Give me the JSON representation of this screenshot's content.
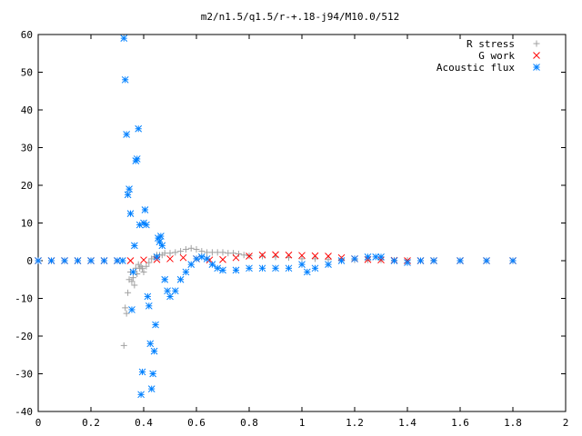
{
  "chart_data": {
    "type": "scatter",
    "title": "m2/n1.5/q1.5/r-+.18-j94/M10.0/512",
    "xlabel": "",
    "ylabel": "",
    "xlim": [
      0,
      2
    ],
    "ylim": [
      -40,
      60
    ],
    "x_ticks": [
      0,
      0.2,
      0.4,
      0.6,
      0.8,
      1,
      1.2,
      1.4,
      1.6,
      1.8,
      2
    ],
    "x_tick_labels": [
      "0",
      "0.2",
      "0.4",
      "0.6",
      "0.8",
      "1",
      "1.2",
      "1.4",
      "1.6",
      "1.8",
      "2"
    ],
    "y_ticks": [
      -40,
      -30,
      -20,
      -10,
      0,
      10,
      20,
      30,
      40,
      50,
      60
    ],
    "y_tick_labels": [
      "-40",
      "-30",
      "-20",
      "-10",
      "0",
      "10",
      "20",
      "30",
      "40",
      "50",
      "60"
    ],
    "grid": false,
    "legend_position": "top-right",
    "series": [
      {
        "name": "R stress",
        "marker": "plus",
        "color": "#a0a0a0",
        "x": [
          0.0,
          0.05,
          0.1,
          0.15,
          0.2,
          0.25,
          0.3,
          0.32,
          0.325,
          0.33,
          0.335,
          0.34,
          0.345,
          0.35,
          0.355,
          0.36,
          0.365,
          0.37,
          0.375,
          0.38,
          0.385,
          0.39,
          0.395,
          0.4,
          0.41,
          0.42,
          0.43,
          0.44,
          0.45,
          0.46,
          0.47,
          0.48,
          0.5,
          0.52,
          0.54,
          0.56,
          0.58,
          0.6,
          0.62,
          0.64,
          0.66,
          0.68,
          0.7,
          0.72,
          0.74,
          0.76,
          0.78,
          0.8,
          0.85,
          0.9,
          0.95,
          1.0,
          1.05,
          1.1,
          1.15,
          1.2,
          1.25,
          1.3,
          1.35,
          1.4,
          1.5,
          1.6,
          1.7,
          1.8
        ],
        "y": [
          0,
          0,
          0,
          0,
          0,
          0,
          0,
          0,
          -22.5,
          -12.5,
          -14,
          -8.5,
          -5,
          -3,
          -5.5,
          -4.5,
          -6.5,
          -2,
          -3.5,
          -1,
          -2,
          -1.5,
          -2,
          -3,
          -1.5,
          -0.5,
          0.5,
          1,
          1.5,
          1.5,
          1.5,
          2,
          2,
          2.2,
          2.5,
          3,
          3.3,
          3,
          2.5,
          2.2,
          2.2,
          2.2,
          2.2,
          2,
          2,
          1.8,
          1.5,
          1.3,
          1.2,
          1,
          0.8,
          0.5,
          0.5,
          0.3,
          0.3,
          0.2,
          0.2,
          0.2,
          0.1,
          0.1,
          0.1,
          0,
          0,
          0
        ]
      },
      {
        "name": "G work",
        "marker": "cross",
        "color": "#ff0000",
        "x": [
          0.0,
          0.05,
          0.1,
          0.15,
          0.2,
          0.25,
          0.3,
          0.35,
          0.4,
          0.45,
          0.5,
          0.55,
          0.6,
          0.65,
          0.7,
          0.75,
          0.8,
          0.85,
          0.9,
          0.95,
          1.0,
          1.05,
          1.1,
          1.15,
          1.2,
          1.25,
          1.3,
          1.35,
          1.4,
          1.45,
          1.5,
          1.6,
          1.7,
          1.8
        ],
        "y": [
          0,
          0,
          0,
          0,
          0,
          0,
          0,
          0,
          0.2,
          0.3,
          0.5,
          0.8,
          0.5,
          0.2,
          0.3,
          0.8,
          1.2,
          1.5,
          1.6,
          1.5,
          1.4,
          1.3,
          1.2,
          0.8,
          0.5,
          0.3,
          0.2,
          0.1,
          0,
          0,
          0,
          0,
          0,
          0
        ]
      },
      {
        "name": "Acoustic flux",
        "marker": "star",
        "color": "#0080ff",
        "x": [
          0.0,
          0.05,
          0.1,
          0.15,
          0.2,
          0.25,
          0.3,
          0.32,
          0.325,
          0.33,
          0.335,
          0.34,
          0.345,
          0.35,
          0.355,
          0.36,
          0.365,
          0.37,
          0.375,
          0.38,
          0.385,
          0.39,
          0.395,
          0.4,
          0.405,
          0.41,
          0.415,
          0.42,
          0.425,
          0.43,
          0.435,
          0.44,
          0.445,
          0.45,
          0.455,
          0.46,
          0.465,
          0.47,
          0.48,
          0.49,
          0.5,
          0.52,
          0.54,
          0.56,
          0.58,
          0.6,
          0.62,
          0.64,
          0.66,
          0.68,
          0.7,
          0.75,
          0.8,
          0.85,
          0.9,
          0.95,
          1.0,
          1.02,
          1.05,
          1.1,
          1.15,
          1.2,
          1.25,
          1.28,
          1.3,
          1.35,
          1.4,
          1.45,
          1.5,
          1.6,
          1.7,
          1.8
        ],
        "y": [
          0,
          0,
          0,
          0,
          0,
          0,
          0,
          0,
          59,
          48,
          33.5,
          17.5,
          19,
          12.5,
          -13,
          -3,
          4,
          26.5,
          27,
          35,
          9.5,
          -35.5,
          -29.5,
          10,
          13.5,
          9.5,
          -9.5,
          -12,
          -22,
          -34,
          -30,
          -24,
          -17,
          1,
          6,
          5,
          6.5,
          4,
          -5,
          -8,
          -9.5,
          -8,
          -5,
          -3,
          -1,
          0.5,
          1,
          0.5,
          -1,
          -2,
          -2.5,
          -2.5,
          -2,
          -2,
          -2,
          -2,
          -1,
          -3,
          -2,
          -1,
          0,
          0.5,
          1,
          1,
          1,
          0,
          -0.5,
          0,
          0,
          0,
          0,
          0
        ]
      }
    ]
  }
}
